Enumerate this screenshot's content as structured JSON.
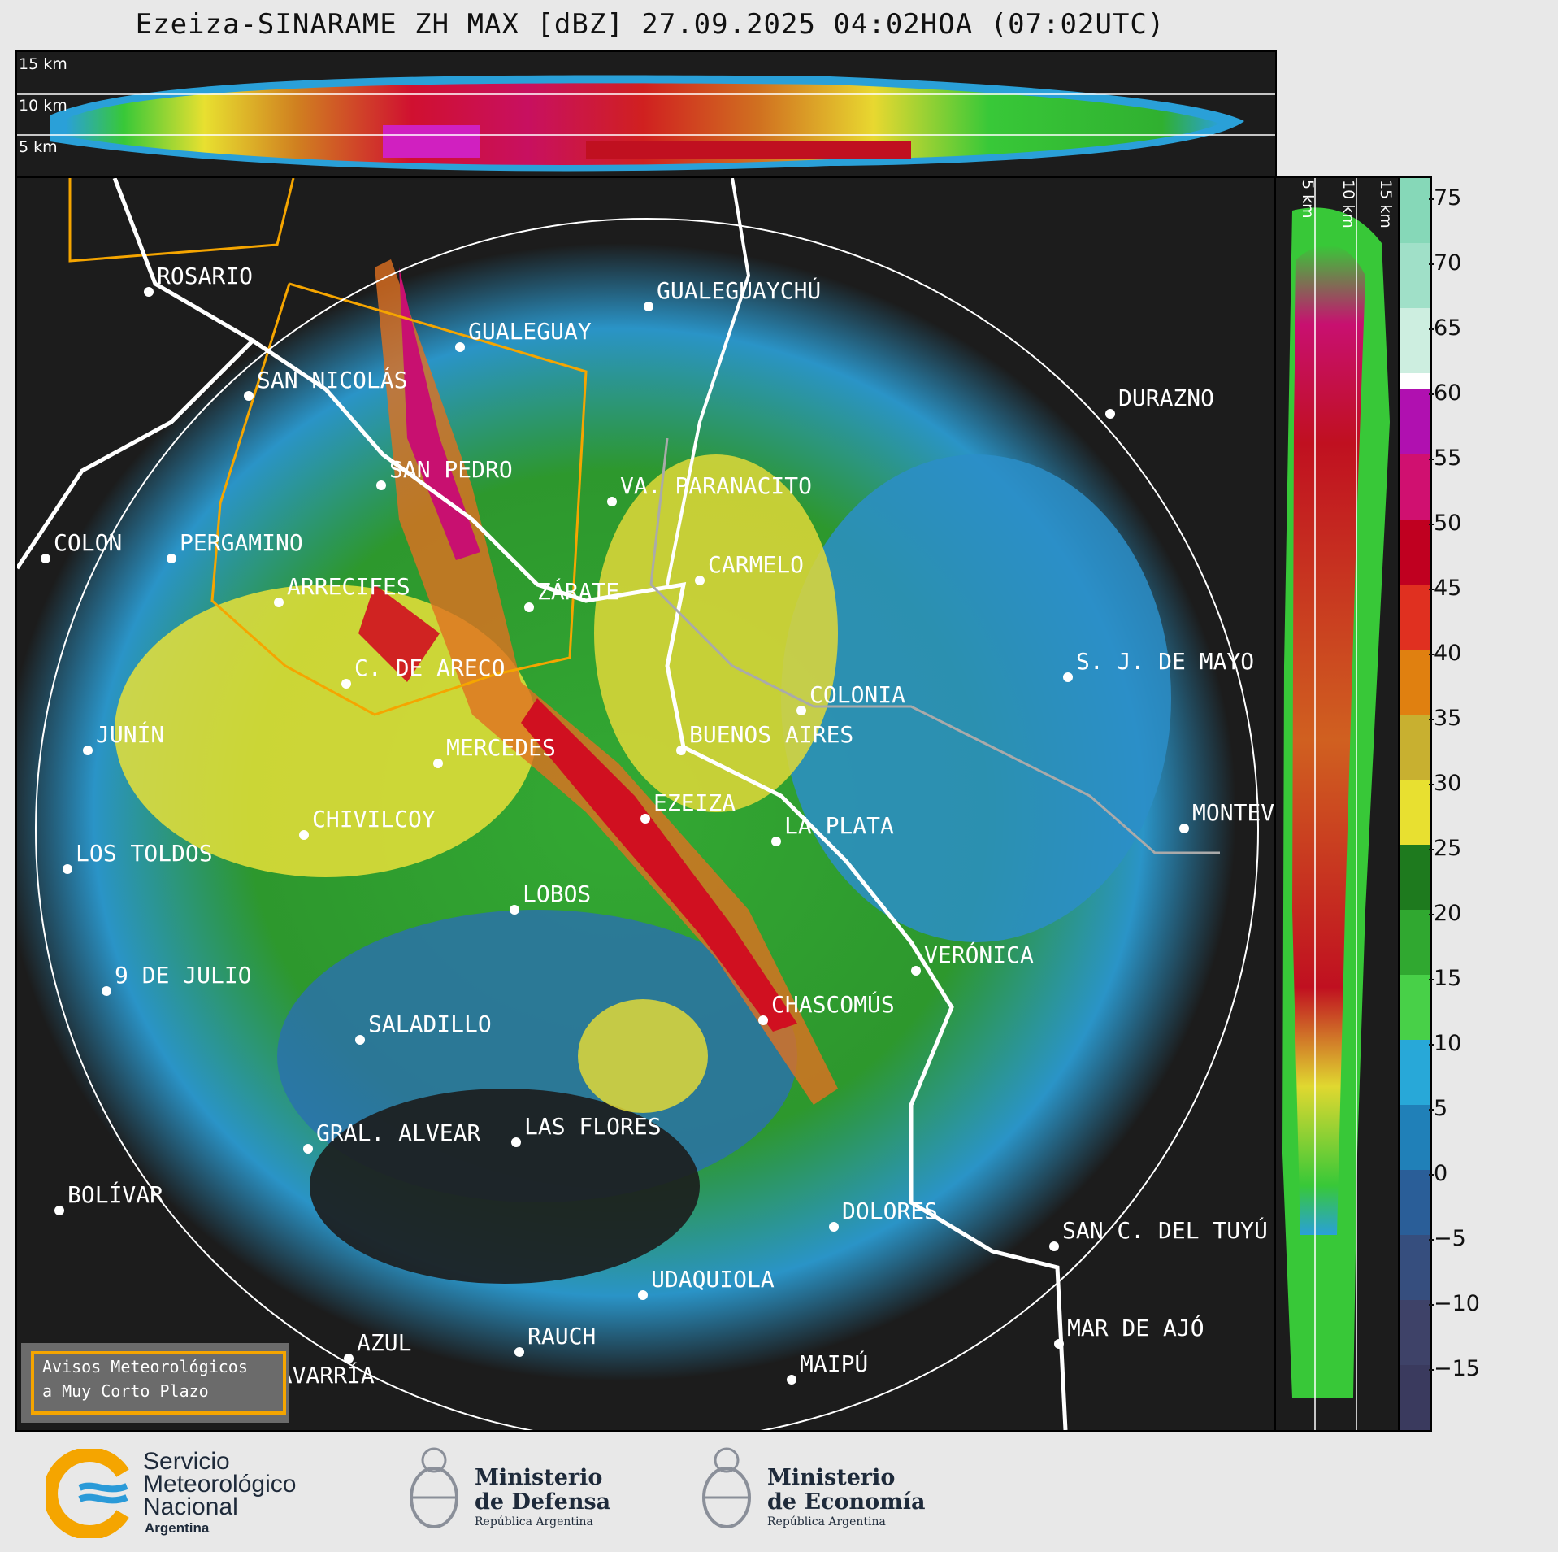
{
  "title": "Ezeiza-SINARAME ZH MAX [dBZ] 27.09.2025 04:02HOA (07:02UTC)",
  "height_labels": {
    "top": [
      "15 km",
      "10 km",
      "5 km"
    ],
    "side": [
      "5 km",
      "10 km",
      "15 km"
    ]
  },
  "colorbar": {
    "ticks": [
      "75",
      "70",
      "65",
      "60",
      "55",
      "50",
      "45",
      "40",
      "35",
      "30",
      "25",
      "20",
      "15",
      "10",
      "5",
      "0",
      "−5",
      "−10",
      "−15"
    ],
    "range": [
      -20,
      77
    ]
  },
  "cities": [
    "ROSARIO",
    "GUALEGUAYCHÚ",
    "GUALEGUAY",
    "SAN NICOLÁS",
    "DURAZNO",
    "SAN PEDRO",
    "VA. PARANACITO",
    "COLON",
    "PERGAMINO",
    "CARMELO",
    "ARRECIFES",
    "ZÁRATE",
    "S. J. DE MAYO",
    "C. DE ARECO",
    "COLONIA",
    "JUNÍN",
    "BUENOS AIRES",
    "MERCEDES",
    "EZEIZA",
    "MONTEVIDEO",
    "CHIVILCOY",
    "LA PLATA",
    "LOS TOLDOS",
    "LOBOS",
    "VERÓNICA",
    "9 DE JULIO",
    "CHASCOMÚS",
    "SALADILLO",
    "GRAL. ALVEAR",
    "LAS FLORES",
    "BOLÍVAR",
    "DOLORES",
    "SAN C. DEL TUYÚ",
    "UDAQUIOLA",
    "RAUCH",
    "AZUL",
    "MAR DE AJÓ",
    "OLAVARRÍA",
    "MAIPÚ"
  ],
  "legend": {
    "line1": "Avisos Meteorológicos",
    "line2": "a Muy Corto Plazo"
  },
  "logos": {
    "smn": {
      "line1": "Servicio",
      "line2": "Meteorológico",
      "line3": "Nacional",
      "line4": "Argentina"
    },
    "defensa": {
      "line1": "Ministerio",
      "line2": "de Defensa",
      "line3": "República Argentina"
    },
    "economia": {
      "line1": "Ministerio",
      "line2": "de Economía",
      "line3": "República Argentina"
    }
  },
  "colors": {
    "panel_bg": "#1c1c1c",
    "warning_outline": "#f5a500",
    "coast": "#ffffff",
    "rivers": "#aaaaaa"
  }
}
